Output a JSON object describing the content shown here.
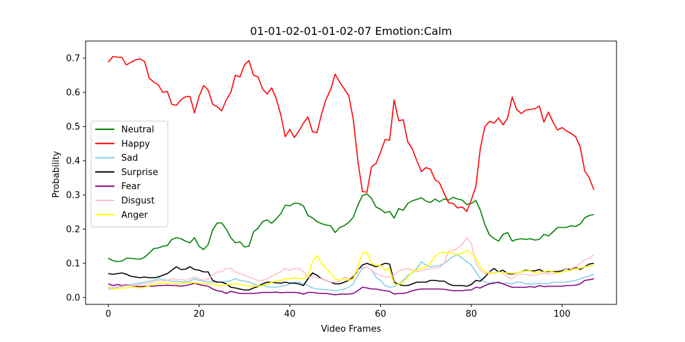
{
  "chart_data": {
    "type": "line",
    "title": "01-01-02-01-01-02-07 Emotion:Calm",
    "xlabel": "Video Frames",
    "ylabel": "Probability",
    "xlim": [
      -5,
      112
    ],
    "ylim": [
      -0.02,
      0.75
    ],
    "xticks": [
      0,
      20,
      40,
      60,
      80,
      100
    ],
    "yticks": [
      0.0,
      0.1,
      0.2,
      0.3,
      0.4,
      0.5,
      0.6,
      0.7
    ],
    "ytick_labels": [
      "0.0",
      "0.1",
      "0.2",
      "0.3",
      "0.4",
      "0.5",
      "0.6",
      "0.7"
    ],
    "xtick_labels": [
      "0",
      "20",
      "40",
      "60",
      "80",
      "100"
    ],
    "grid": false,
    "legend_position": "center-left",
    "series": [
      {
        "name": "Neutral",
        "color": "#008000",
        "values": [
          0.115,
          0.108,
          0.105,
          0.107,
          0.115,
          0.115,
          0.113,
          0.112,
          0.118,
          0.13,
          0.143,
          0.145,
          0.15,
          0.152,
          0.17,
          0.175,
          0.172,
          0.165,
          0.16,
          0.175,
          0.15,
          0.14,
          0.155,
          0.198,
          0.218,
          0.218,
          0.2,
          0.175,
          0.16,
          0.163,
          0.148,
          0.15,
          0.192,
          0.203,
          0.222,
          0.227,
          0.217,
          0.23,
          0.245,
          0.27,
          0.268,
          0.276,
          0.275,
          0.268,
          0.24,
          0.233,
          0.222,
          0.216,
          0.212,
          0.21,
          0.19,
          0.205,
          0.21,
          0.22,
          0.235,
          0.27,
          0.298,
          0.303,
          0.29,
          0.265,
          0.258,
          0.248,
          0.252,
          0.232,
          0.26,
          0.255,
          0.275,
          0.283,
          0.287,
          0.292,
          0.282,
          0.278,
          0.288,
          0.28,
          0.288,
          0.285,
          0.293,
          0.288,
          0.285,
          0.272,
          0.275,
          0.284,
          0.255,
          0.213,
          0.183,
          0.173,
          0.165,
          0.185,
          0.19,
          0.165,
          0.17,
          0.172,
          0.17,
          0.172,
          0.168,
          0.17,
          0.185,
          0.18,
          0.192,
          0.205,
          0.205,
          0.205,
          0.21,
          0.208,
          0.215,
          0.233,
          0.24,
          0.243
        ]
      },
      {
        "name": "Happy",
        "color": "#ff0000",
        "values": [
          0.688,
          0.705,
          0.703,
          0.702,
          0.68,
          0.688,
          0.695,
          0.698,
          0.69,
          0.642,
          0.63,
          0.622,
          0.6,
          0.603,
          0.565,
          0.562,
          0.578,
          0.587,
          0.588,
          0.54,
          0.588,
          0.62,
          0.607,
          0.565,
          0.558,
          0.546,
          0.578,
          0.6,
          0.65,
          0.645,
          0.68,
          0.693,
          0.65,
          0.645,
          0.61,
          0.595,
          0.613,
          0.582,
          0.535,
          0.47,
          0.492,
          0.468,
          0.487,
          0.51,
          0.528,
          0.485,
          0.482,
          0.537,
          0.58,
          0.608,
          0.653,
          0.63,
          0.61,
          0.59,
          0.52,
          0.4,
          0.31,
          0.308,
          0.382,
          0.392,
          0.425,
          0.462,
          0.46,
          0.578,
          0.517,
          0.52,
          0.455,
          0.435,
          0.4,
          0.368,
          0.38,
          0.375,
          0.345,
          0.335,
          0.305,
          0.277,
          0.275,
          0.262,
          0.265,
          0.252,
          0.285,
          0.325,
          0.437,
          0.5,
          0.515,
          0.51,
          0.525,
          0.505,
          0.525,
          0.586,
          0.55,
          0.538,
          0.548,
          0.55,
          0.552,
          0.56,
          0.513,
          0.542,
          0.513,
          0.49,
          0.497,
          0.487,
          0.48,
          0.47,
          0.44,
          0.37,
          0.35,
          0.315
        ]
      },
      {
        "name": "Sad",
        "color": "#87ceeb",
        "values": [
          0.025,
          0.025,
          0.03,
          0.032,
          0.035,
          0.038,
          0.04,
          0.042,
          0.045,
          0.048,
          0.05,
          0.055,
          0.053,
          0.05,
          0.048,
          0.047,
          0.046,
          0.045,
          0.048,
          0.055,
          0.05,
          0.048,
          0.046,
          0.045,
          0.046,
          0.045,
          0.046,
          0.05,
          0.055,
          0.05,
          0.048,
          0.045,
          0.04,
          0.035,
          0.035,
          0.032,
          0.03,
          0.03,
          0.033,
          0.035,
          0.04,
          0.045,
          0.045,
          0.04,
          0.035,
          0.028,
          0.025,
          0.024,
          0.023,
          0.022,
          0.02,
          0.022,
          0.025,
          0.03,
          0.04,
          0.065,
          0.085,
          0.09,
          0.08,
          0.06,
          0.05,
          0.035,
          0.03,
          0.032,
          0.04,
          0.05,
          0.065,
          0.072,
          0.085,
          0.105,
          0.095,
          0.09,
          0.092,
          0.093,
          0.1,
          0.11,
          0.12,
          0.125,
          0.115,
          0.105,
          0.095,
          0.075,
          0.055,
          0.045,
          0.042,
          0.045,
          0.042,
          0.04,
          0.043,
          0.04,
          0.045,
          0.045,
          0.04,
          0.04,
          0.04,
          0.042,
          0.04,
          0.04,
          0.045,
          0.045,
          0.045,
          0.045,
          0.048,
          0.05,
          0.055,
          0.06,
          0.063,
          0.068
        ]
      },
      {
        "name": "Surprise",
        "color": "#000000",
        "values": [
          0.07,
          0.068,
          0.07,
          0.072,
          0.068,
          0.062,
          0.06,
          0.058,
          0.06,
          0.058,
          0.058,
          0.06,
          0.065,
          0.07,
          0.08,
          0.09,
          0.082,
          0.083,
          0.09,
          0.082,
          0.08,
          0.075,
          0.075,
          0.05,
          0.045,
          0.045,
          0.04,
          0.03,
          0.028,
          0.025,
          0.022,
          0.022,
          0.028,
          0.032,
          0.04,
          0.045,
          0.045,
          0.043,
          0.042,
          0.045,
          0.042,
          0.042,
          0.04,
          0.035,
          0.055,
          0.072,
          0.065,
          0.055,
          0.05,
          0.045,
          0.04,
          0.04,
          0.045,
          0.05,
          0.06,
          0.08,
          0.095,
          0.1,
          0.095,
          0.09,
          0.095,
          0.1,
          0.098,
          0.045,
          0.038,
          0.035,
          0.035,
          0.04,
          0.045,
          0.045,
          0.045,
          0.05,
          0.05,
          0.048,
          0.048,
          0.04,
          0.035,
          0.035,
          0.035,
          0.033,
          0.038,
          0.05,
          0.048,
          0.06,
          0.075,
          0.085,
          0.075,
          0.08,
          0.07,
          0.068,
          0.072,
          0.075,
          0.08,
          0.078,
          0.078,
          0.082,
          0.075,
          0.076,
          0.076,
          0.076,
          0.078,
          0.085,
          0.08,
          0.088,
          0.082,
          0.09,
          0.098,
          0.1
        ]
      },
      {
        "name": "Fear",
        "color": "#800080",
        "values": [
          0.04,
          0.035,
          0.038,
          0.035,
          0.037,
          0.035,
          0.033,
          0.032,
          0.033,
          0.034,
          0.033,
          0.035,
          0.035,
          0.036,
          0.035,
          0.035,
          0.033,
          0.035,
          0.038,
          0.042,
          0.038,
          0.035,
          0.033,
          0.025,
          0.02,
          0.018,
          0.012,
          0.018,
          0.015,
          0.012,
          0.012,
          0.012,
          0.012,
          0.013,
          0.015,
          0.015,
          0.015,
          0.016,
          0.014,
          0.015,
          0.015,
          0.015,
          0.014,
          0.01,
          0.015,
          0.015,
          0.013,
          0.012,
          0.012,
          0.01,
          0.008,
          0.01,
          0.01,
          0.01,
          0.012,
          0.02,
          0.03,
          0.028,
          0.025,
          0.025,
          0.022,
          0.02,
          0.018,
          0.01,
          0.012,
          0.012,
          0.015,
          0.02,
          0.023,
          0.025,
          0.025,
          0.025,
          0.025,
          0.025,
          0.024,
          0.022,
          0.02,
          0.02,
          0.02,
          0.022,
          0.022,
          0.03,
          0.028,
          0.035,
          0.04,
          0.042,
          0.045,
          0.04,
          0.035,
          0.03,
          0.03,
          0.03,
          0.03,
          0.032,
          0.03,
          0.035,
          0.032,
          0.033,
          0.033,
          0.033,
          0.033,
          0.035,
          0.035,
          0.036,
          0.04,
          0.05,
          0.052,
          0.055
        ]
      },
      {
        "name": "Disgust",
        "color": "#ffc0cb",
        "values": [
          0.03,
          0.03,
          0.032,
          0.033,
          0.035,
          0.035,
          0.035,
          0.038,
          0.04,
          0.042,
          0.045,
          0.05,
          0.048,
          0.05,
          0.055,
          0.052,
          0.053,
          0.05,
          0.055,
          0.06,
          0.055,
          0.05,
          0.055,
          0.065,
          0.075,
          0.075,
          0.085,
          0.085,
          0.075,
          0.07,
          0.065,
          0.06,
          0.055,
          0.05,
          0.05,
          0.055,
          0.062,
          0.07,
          0.075,
          0.085,
          0.08,
          0.085,
          0.085,
          0.075,
          0.06,
          0.06,
          0.058,
          0.055,
          0.05,
          0.045,
          0.045,
          0.048,
          0.06,
          0.055,
          0.065,
          0.08,
          0.088,
          0.09,
          0.08,
          0.07,
          0.065,
          0.06,
          0.06,
          0.065,
          0.078,
          0.082,
          0.085,
          0.08,
          0.075,
          0.078,
          0.082,
          0.085,
          0.085,
          0.088,
          0.1,
          0.135,
          0.138,
          0.145,
          0.155,
          0.175,
          0.16,
          0.1,
          0.08,
          0.07,
          0.075,
          0.07,
          0.075,
          0.07,
          0.06,
          0.055,
          0.065,
          0.068,
          0.068,
          0.065,
          0.065,
          0.068,
          0.07,
          0.068,
          0.07,
          0.072,
          0.075,
          0.085,
          0.085,
          0.09,
          0.1,
          0.11,
          0.115,
          0.125
        ]
      },
      {
        "name": "Anger",
        "color": "#ffff00",
        "values": [
          0.03,
          0.025,
          0.025,
          0.028,
          0.028,
          0.03,
          0.03,
          0.028,
          0.03,
          0.035,
          0.038,
          0.04,
          0.042,
          0.042,
          0.042,
          0.04,
          0.04,
          0.042,
          0.045,
          0.043,
          0.042,
          0.04,
          0.04,
          0.04,
          0.035,
          0.035,
          0.038,
          0.038,
          0.04,
          0.04,
          0.035,
          0.033,
          0.033,
          0.033,
          0.035,
          0.04,
          0.045,
          0.048,
          0.05,
          0.055,
          0.055,
          0.058,
          0.055,
          0.055,
          0.065,
          0.105,
          0.123,
          0.1,
          0.085,
          0.07,
          0.055,
          0.05,
          0.055,
          0.05,
          0.055,
          0.09,
          0.13,
          0.133,
          0.1,
          0.093,
          0.095,
          0.08,
          0.085,
          0.04,
          0.038,
          0.045,
          0.06,
          0.075,
          0.08,
          0.085,
          0.09,
          0.1,
          0.12,
          0.13,
          0.133,
          0.13,
          0.13,
          0.125,
          0.13,
          0.138,
          0.13,
          0.115,
          0.09,
          0.075,
          0.07,
          0.072,
          0.075,
          0.073,
          0.072,
          0.07,
          0.072,
          0.075,
          0.078,
          0.078,
          0.072,
          0.075,
          0.075,
          0.078,
          0.075,
          0.072,
          0.075,
          0.078,
          0.08,
          0.085,
          0.085,
          0.09,
          0.092,
          0.095
        ]
      }
    ]
  }
}
